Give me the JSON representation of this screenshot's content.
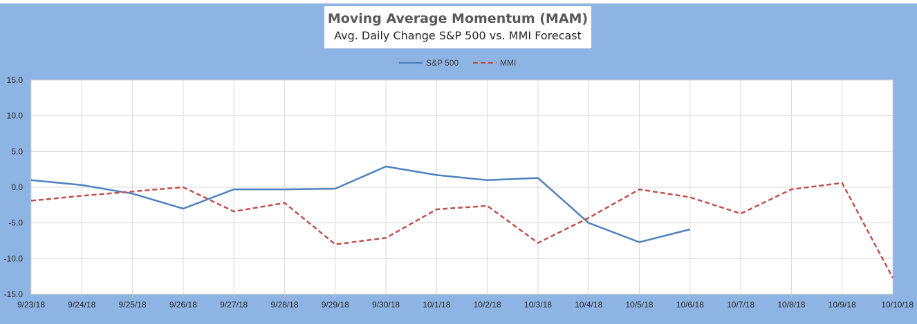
{
  "chart_data": {
    "type": "line",
    "title": "Moving Average Momentum (MAM)",
    "subtitle": "Avg. Daily Change S&P 500 vs. MMI Forecast",
    "xlabel": "",
    "ylabel": "",
    "categories": [
      "9/23/18",
      "9/24/18",
      "9/25/18",
      "9/26/18",
      "9/27/18",
      "9/28/18",
      "9/29/18",
      "9/30/18",
      "10/1/18",
      "10/2/18",
      "10/3/18",
      "10/4/18",
      "10/5/18",
      "10/6/18",
      "10/7/18",
      "10/8/18",
      "10/9/18",
      "10/10/18"
    ],
    "ylim": [
      -15,
      15
    ],
    "yticks": [
      -15,
      -10,
      -5,
      0,
      5,
      10,
      15
    ],
    "ytick_labels": [
      "-15.0",
      "-10.0",
      "-5.0",
      "0.0",
      "5.0",
      "10.0",
      "15.0"
    ],
    "grid": true,
    "legend_position": "top",
    "series": [
      {
        "name": "S&P 500",
        "color": "#4f81bd",
        "dash": "solid",
        "values": [
          1.0,
          0.3,
          -0.9,
          -3.0,
          -0.3,
          -0.3,
          -0.2,
          2.9,
          1.7,
          1.0,
          1.3,
          -5.0,
          -7.7,
          -5.9,
          null,
          null,
          null,
          null
        ]
      },
      {
        "name": "MMI",
        "color": "#c0504d",
        "dash": "dashed",
        "values": [
          -1.9,
          -1.2,
          -0.6,
          0.0,
          -3.4,
          -2.2,
          -8.0,
          -7.1,
          -3.1,
          -2.6,
          -7.8,
          -4.3,
          -0.3,
          -1.4,
          -3.7,
          -0.3,
          0.6,
          -12.7
        ]
      }
    ]
  }
}
